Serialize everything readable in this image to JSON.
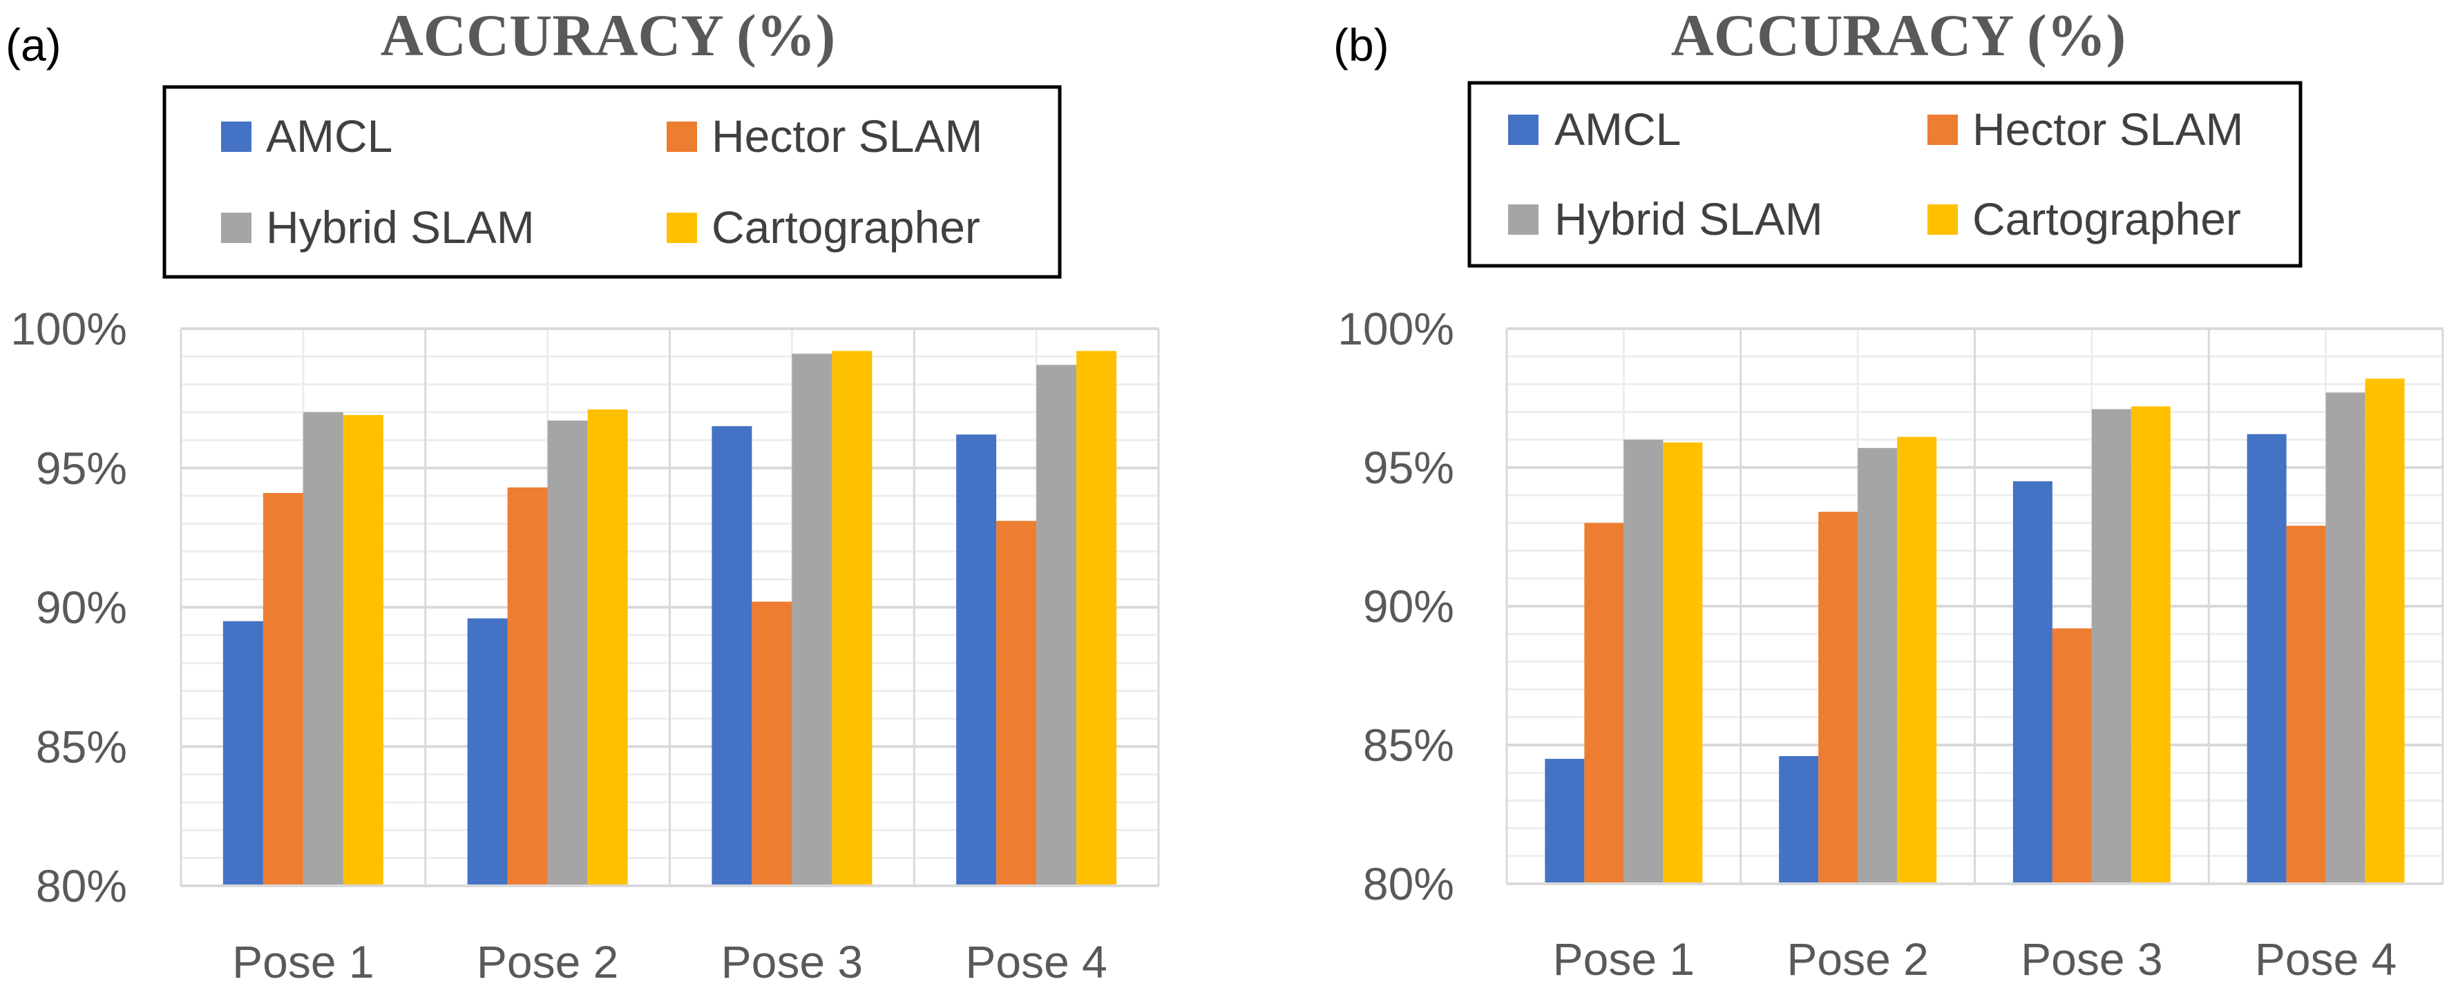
{
  "colors": {
    "AMCL": "#4472C4",
    "Hector SLAM": "#ED7D31",
    "Hybrid SLAM": "#A5A5A5",
    "Cartographer": "#FFC000",
    "grid_major": "#D9D9D9",
    "grid_minor": "#EDEDED",
    "axis_text": "#595959",
    "title_text": "#595959"
  },
  "chart_data": [
    {
      "panel_label": "(a)",
      "type": "bar",
      "title": "ACCURACY (%)",
      "categories": [
        "Pose 1",
        "Pose 2",
        "Pose 3",
        "Pose 4"
      ],
      "series": [
        {
          "name": "AMCL",
          "values": [
            89.5,
            89.6,
            96.5,
            96.2
          ]
        },
        {
          "name": "Hector SLAM",
          "values": [
            94.1,
            94.3,
            90.2,
            93.1
          ]
        },
        {
          "name": "Hybrid SLAM",
          "values": [
            97.0,
            96.7,
            99.1,
            98.7
          ]
        },
        {
          "name": "Cartographer",
          "values": [
            96.9,
            97.1,
            99.2,
            99.2
          ]
        }
      ],
      "ylim": [
        80,
        100
      ],
      "yticks": [
        "80%",
        "85%",
        "90%",
        "95%",
        "100%"
      ],
      "ytick_values": [
        80,
        85,
        90,
        95,
        100
      ],
      "legend_position": "top",
      "grid": true
    },
    {
      "panel_label": "(b)",
      "type": "bar",
      "title": "ACCURACY (%)",
      "categories": [
        "Pose 1",
        "Pose 2",
        "Pose 3",
        "Pose 4"
      ],
      "series": [
        {
          "name": "AMCL",
          "values": [
            84.5,
            84.6,
            94.5,
            96.2
          ]
        },
        {
          "name": "Hector SLAM",
          "values": [
            93.0,
            93.4,
            89.2,
            92.9
          ]
        },
        {
          "name": "Hybrid SLAM",
          "values": [
            96.0,
            95.7,
            97.1,
            97.7
          ]
        },
        {
          "name": "Cartographer",
          "values": [
            95.9,
            96.1,
            97.2,
            98.2
          ]
        }
      ],
      "ylim": [
        80,
        100
      ],
      "yticks": [
        "80%",
        "85%",
        "90%",
        "95%",
        "100%"
      ],
      "ytick_values": [
        80,
        85,
        90,
        95,
        100
      ],
      "legend_position": "top",
      "grid": true
    }
  ]
}
